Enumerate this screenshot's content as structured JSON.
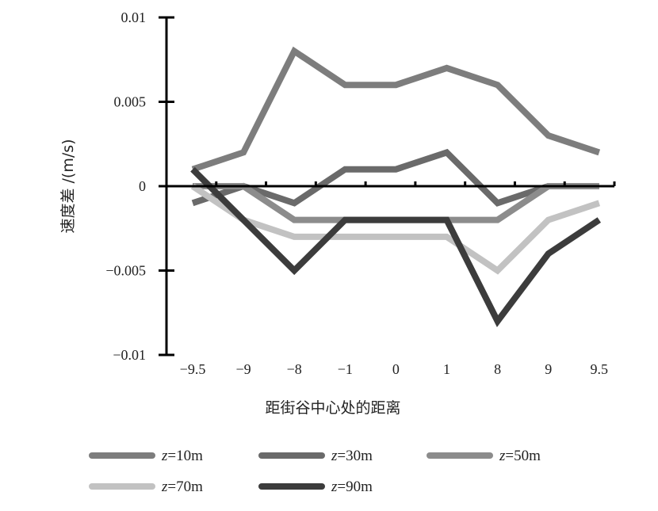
{
  "chart_data": {
    "type": "line",
    "title": "",
    "xlabel": "距街谷中心处的距离",
    "ylabel": "速度差 /(m/s)",
    "categories": [
      "−9.5",
      "−9",
      "−8",
      "−1",
      "0",
      "1",
      "8",
      "9",
      "9.5"
    ],
    "yticks": [
      {
        "value": 0.01,
        "label": "0.01"
      },
      {
        "value": 0.005,
        "label": "0.005"
      },
      {
        "value": 0,
        "label": "0"
      },
      {
        "value": -0.005,
        "label": "−0.005"
      },
      {
        "value": -0.01,
        "label": "−0.01"
      }
    ],
    "ylim": [
      -0.01,
      0.01
    ],
    "grid": false,
    "legend_position": "bottom",
    "series": [
      {
        "var": "z",
        "name": "=10m",
        "color": "#7d7d7d",
        "values": [
          0.001,
          0.002,
          0.008,
          0.006,
          0.006,
          0.007,
          0.006,
          0.003,
          0.002
        ]
      },
      {
        "var": "z",
        "name": "=30m",
        "color": "#6a6a6a",
        "values": [
          -0.001,
          0,
          -0.001,
          0.001,
          0.001,
          0.002,
          -0.001,
          0,
          0
        ]
      },
      {
        "var": "z",
        "name": "=50m",
        "color": "#8c8c8c",
        "values": [
          0,
          0,
          -0.002,
          -0.002,
          -0.002,
          -0.002,
          -0.002,
          0,
          0
        ]
      },
      {
        "var": "z",
        "name": "=70m",
        "color": "#c2c2c2",
        "values": [
          0,
          -0.002,
          -0.003,
          -0.003,
          -0.003,
          -0.003,
          -0.005,
          -0.002,
          -0.001
        ]
      },
      {
        "var": "z",
        "name": "=90m",
        "color": "#3c3c3c",
        "values": [
          0.001,
          -0.002,
          -0.005,
          -0.002,
          -0.002,
          -0.002,
          -0.008,
          -0.004,
          -0.002
        ]
      }
    ]
  }
}
